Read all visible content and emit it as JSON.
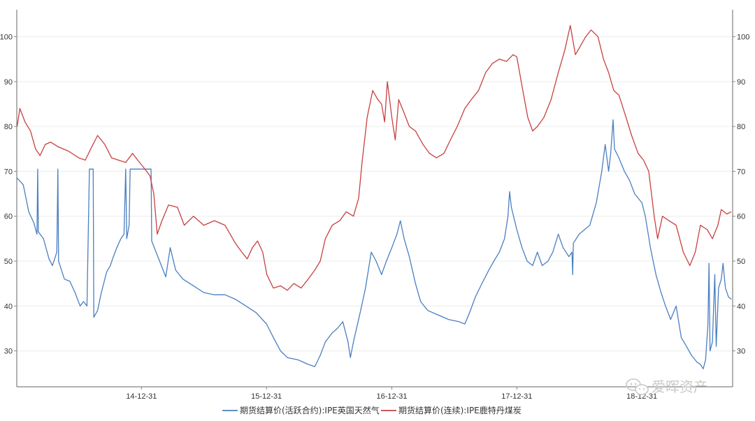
{
  "chart_data": {
    "type": "line",
    "title": "",
    "xlabel": "",
    "ylabel": "",
    "x_tick_labels": [
      "14-12-31",
      "15-12-31",
      "16-12-31",
      "17-12-31",
      "18-12-31"
    ],
    "y_ticks": [
      30,
      40,
      50,
      60,
      70,
      80,
      90,
      100
    ],
    "ylim": [
      22,
      106
    ],
    "grid": "horizontal",
    "legend_position": "bottom",
    "series": [
      {
        "name": "期货结算价(活跃合约):IPE英国天然气",
        "color": "#4a7fc1",
        "points": [
          [
            "2014-01-02",
            68.5
          ],
          [
            "2014-01-20",
            67
          ],
          [
            "2014-02-05",
            61
          ],
          [
            "2014-02-20",
            58.5
          ],
          [
            "2014-03-01",
            56
          ],
          [
            "2014-03-03",
            70.5
          ],
          [
            "2014-03-05",
            56.5
          ],
          [
            "2014-03-20",
            55
          ],
          [
            "2014-04-05",
            50.5
          ],
          [
            "2014-04-15",
            49
          ],
          [
            "2014-04-28",
            52
          ],
          [
            "2014-05-01",
            70.5
          ],
          [
            "2014-05-03",
            50
          ],
          [
            "2014-05-20",
            46
          ],
          [
            "2014-06-05",
            45.5
          ],
          [
            "2014-06-20",
            43
          ],
          [
            "2014-07-05",
            40
          ],
          [
            "2014-07-15",
            41
          ],
          [
            "2014-07-25",
            40
          ],
          [
            "2014-08-01",
            70.5
          ],
          [
            "2014-08-12",
            70.5
          ],
          [
            "2014-08-14",
            37.5
          ],
          [
            "2014-08-25",
            39
          ],
          [
            "2014-09-05",
            43
          ],
          [
            "2014-09-20",
            47.5
          ],
          [
            "2014-10-01",
            49
          ],
          [
            "2014-10-10",
            51
          ],
          [
            "2014-10-20",
            53
          ],
          [
            "2014-11-01",
            55
          ],
          [
            "2014-11-10",
            56
          ],
          [
            "2014-11-15",
            70.5
          ],
          [
            "2014-11-18",
            55
          ],
          [
            "2014-11-25",
            58
          ],
          [
            "2014-11-28",
            70.5
          ],
          [
            "2015-01-28",
            70.5
          ],
          [
            "2015-01-30",
            54.5
          ],
          [
            "2015-03-12",
            46.5
          ],
          [
            "2015-03-25",
            53
          ],
          [
            "2015-04-10",
            48
          ],
          [
            "2015-05-01",
            46
          ],
          [
            "2015-06-01",
            44.5
          ],
          [
            "2015-07-01",
            43
          ],
          [
            "2015-08-01",
            42.5
          ],
          [
            "2015-09-01",
            42.5
          ],
          [
            "2015-10-01",
            41.5
          ],
          [
            "2015-11-01",
            40
          ],
          [
            "2015-12-01",
            38.5
          ],
          [
            "2015-12-31",
            36
          ],
          [
            "2016-01-20",
            33
          ],
          [
            "2016-02-10",
            30
          ],
          [
            "2016-03-01",
            28.5
          ],
          [
            "2016-04-01",
            28
          ],
          [
            "2016-05-01",
            27
          ],
          [
            "2016-05-20",
            26.5
          ],
          [
            "2016-06-05",
            29
          ],
          [
            "2016-06-20",
            32
          ],
          [
            "2016-07-10",
            34
          ],
          [
            "2016-07-25",
            35
          ],
          [
            "2016-08-10",
            36.5
          ],
          [
            "2016-08-25",
            32
          ],
          [
            "2016-09-01",
            28.5
          ],
          [
            "2016-09-10",
            32
          ],
          [
            "2016-10-01",
            39
          ],
          [
            "2016-10-15",
            44
          ],
          [
            "2016-11-01",
            52
          ],
          [
            "2016-11-15",
            50
          ],
          [
            "2016-12-01",
            47
          ],
          [
            "2016-12-15",
            50
          ],
          [
            "2016-12-31",
            53
          ],
          [
            "2017-01-15",
            56
          ],
          [
            "2017-01-25",
            59
          ],
          [
            "2017-02-05",
            55
          ],
          [
            "2017-02-20",
            51
          ],
          [
            "2017-03-10",
            45
          ],
          [
            "2017-03-25",
            41
          ],
          [
            "2017-04-15",
            39
          ],
          [
            "2017-05-15",
            38
          ],
          [
            "2017-06-15",
            37
          ],
          [
            "2017-07-15",
            36.5
          ],
          [
            "2017-08-01",
            36
          ],
          [
            "2017-08-15",
            38.5
          ],
          [
            "2017-09-01",
            42
          ],
          [
            "2017-09-20",
            45
          ],
          [
            "2017-10-10",
            48
          ],
          [
            "2017-10-25",
            50
          ],
          [
            "2017-11-10",
            52
          ],
          [
            "2017-11-25",
            55
          ],
          [
            "2017-12-05",
            60
          ],
          [
            "2017-12-10",
            65.5
          ],
          [
            "2017-12-15",
            62
          ],
          [
            "2017-12-31",
            57
          ],
          [
            "2018-01-15",
            53
          ],
          [
            "2018-01-30",
            50
          ],
          [
            "2018-02-15",
            49
          ],
          [
            "2018-03-01",
            52
          ],
          [
            "2018-03-15",
            49
          ],
          [
            "2018-04-01",
            50
          ],
          [
            "2018-04-15",
            52
          ],
          [
            "2018-05-01",
            56
          ],
          [
            "2018-05-15",
            53
          ],
          [
            "2018-06-01",
            51
          ],
          [
            "2018-06-10",
            52
          ],
          [
            "2018-06-12",
            47
          ],
          [
            "2018-06-14",
            54
          ],
          [
            "2018-07-01",
            56
          ],
          [
            "2018-08-01",
            58
          ],
          [
            "2018-08-20",
            63
          ],
          [
            "2018-09-05",
            70
          ],
          [
            "2018-09-15",
            76
          ],
          [
            "2018-09-25",
            70
          ],
          [
            "2018-10-01",
            74
          ],
          [
            "2018-10-08",
            81.5
          ],
          [
            "2018-10-12",
            75
          ],
          [
            "2018-10-25",
            73
          ],
          [
            "2018-11-10",
            70
          ],
          [
            "2018-11-25",
            68
          ],
          [
            "2018-12-10",
            65
          ],
          [
            "2018-12-31",
            63
          ],
          [
            "2019-01-10",
            60
          ],
          [
            "2019-01-25",
            53
          ],
          [
            "2019-02-10",
            47
          ],
          [
            "2019-02-25",
            43
          ],
          [
            "2019-03-10",
            40
          ],
          [
            "2019-03-25",
            37
          ],
          [
            "2019-04-10",
            40
          ],
          [
            "2019-04-25",
            33
          ],
          [
            "2019-05-10",
            31
          ],
          [
            "2019-05-25",
            29
          ],
          [
            "2019-06-10",
            27.5
          ],
          [
            "2019-06-20",
            27
          ],
          [
            "2019-06-28",
            26
          ],
          [
            "2019-07-05",
            28
          ],
          [
            "2019-07-12",
            36
          ],
          [
            "2019-07-15",
            49.5
          ],
          [
            "2019-07-18",
            30
          ],
          [
            "2019-07-25",
            32
          ],
          [
            "2019-08-01",
            47
          ],
          [
            "2019-08-05",
            31
          ],
          [
            "2019-08-12",
            44
          ],
          [
            "2019-08-20",
            46
          ],
          [
            "2019-08-25",
            49.5
          ],
          [
            "2019-09-01",
            44
          ],
          [
            "2019-09-10",
            42
          ],
          [
            "2019-09-18",
            41.5
          ]
        ]
      },
      {
        "name": "期货结算价(连续):IPE鹿特丹煤炭",
        "color": "#c84040",
        "points": [
          [
            "2014-01-02",
            80
          ],
          [
            "2014-01-10",
            84
          ],
          [
            "2014-01-25",
            81
          ],
          [
            "2014-02-10",
            79
          ],
          [
            "2014-02-25",
            75
          ],
          [
            "2014-03-10",
            73.5
          ],
          [
            "2014-03-25",
            76
          ],
          [
            "2014-04-10",
            76.5
          ],
          [
            "2014-05-01",
            75.5
          ],
          [
            "2014-06-01",
            74.5
          ],
          [
            "2014-07-01",
            73
          ],
          [
            "2014-07-20",
            72.5
          ],
          [
            "2014-08-05",
            75
          ],
          [
            "2014-08-25",
            78
          ],
          [
            "2014-09-15",
            76
          ],
          [
            "2014-10-05",
            73
          ],
          [
            "2014-10-25",
            72.5
          ],
          [
            "2014-11-15",
            72
          ],
          [
            "2014-12-05",
            74
          ],
          [
            "2014-12-20",
            72.5
          ],
          [
            "2015-01-05",
            71
          ],
          [
            "2015-01-25",
            69
          ],
          [
            "2015-02-05",
            65
          ],
          [
            "2015-02-15",
            56
          ],
          [
            "2015-03-01",
            59
          ],
          [
            "2015-03-20",
            62.5
          ],
          [
            "2015-04-15",
            62
          ],
          [
            "2015-05-05",
            58
          ],
          [
            "2015-06-01",
            60
          ],
          [
            "2015-07-01",
            58
          ],
          [
            "2015-08-01",
            59
          ],
          [
            "2015-09-01",
            58
          ],
          [
            "2015-10-01",
            54
          ],
          [
            "2015-10-20",
            52
          ],
          [
            "2015-11-05",
            50.5
          ],
          [
            "2015-11-20",
            53
          ],
          [
            "2015-12-05",
            54.5
          ],
          [
            "2015-12-20",
            52
          ],
          [
            "2016-01-01",
            47
          ],
          [
            "2016-01-20",
            44
          ],
          [
            "2016-02-10",
            44.5
          ],
          [
            "2016-03-01",
            43.5
          ],
          [
            "2016-03-20",
            45
          ],
          [
            "2016-04-10",
            44
          ],
          [
            "2016-05-01",
            46
          ],
          [
            "2016-05-20",
            48
          ],
          [
            "2016-06-05",
            50
          ],
          [
            "2016-06-20",
            55
          ],
          [
            "2016-07-10",
            58
          ],
          [
            "2016-08-01",
            59
          ],
          [
            "2016-08-20",
            61
          ],
          [
            "2016-09-10",
            60
          ],
          [
            "2016-09-25",
            64
          ],
          [
            "2016-10-05",
            72
          ],
          [
            "2016-10-20",
            82
          ],
          [
            "2016-11-05",
            88
          ],
          [
            "2016-11-20",
            86
          ],
          [
            "2016-12-01",
            85
          ],
          [
            "2016-12-10",
            81
          ],
          [
            "2016-12-18",
            90
          ],
          [
            "2016-12-31",
            82
          ],
          [
            "2017-01-10",
            77
          ],
          [
            "2017-01-20",
            86
          ],
          [
            "2017-02-05",
            83
          ],
          [
            "2017-02-20",
            80
          ],
          [
            "2017-03-10",
            79
          ],
          [
            "2017-04-01",
            76
          ],
          [
            "2017-04-20",
            74
          ],
          [
            "2017-05-10",
            73
          ],
          [
            "2017-06-01",
            74
          ],
          [
            "2017-06-20",
            77
          ],
          [
            "2017-07-10",
            80
          ],
          [
            "2017-08-01",
            84
          ],
          [
            "2017-08-20",
            86
          ],
          [
            "2017-09-10",
            88
          ],
          [
            "2017-10-01",
            92
          ],
          [
            "2017-10-20",
            94
          ],
          [
            "2017-11-10",
            95
          ],
          [
            "2017-12-01",
            94.5
          ],
          [
            "2017-12-20",
            96
          ],
          [
            "2017-12-31",
            95.5
          ],
          [
            "2018-01-15",
            89
          ],
          [
            "2018-02-01",
            82
          ],
          [
            "2018-02-15",
            79
          ],
          [
            "2018-03-01",
            80
          ],
          [
            "2018-03-20",
            82
          ],
          [
            "2018-04-10",
            86
          ],
          [
            "2018-05-01",
            92
          ],
          [
            "2018-05-20",
            97
          ],
          [
            "2018-06-05",
            102.5
          ],
          [
            "2018-06-20",
            96
          ],
          [
            "2018-07-05",
            98
          ],
          [
            "2018-07-20",
            100
          ],
          [
            "2018-08-05",
            101.5
          ],
          [
            "2018-08-25",
            100
          ],
          [
            "2018-09-10",
            95
          ],
          [
            "2018-09-25",
            92
          ],
          [
            "2018-10-10",
            88
          ],
          [
            "2018-10-25",
            87
          ],
          [
            "2018-11-15",
            82
          ],
          [
            "2018-12-01",
            78
          ],
          [
            "2018-12-20",
            74
          ],
          [
            "2019-01-05",
            72.5
          ],
          [
            "2019-01-20",
            70
          ],
          [
            "2019-02-05",
            60
          ],
          [
            "2019-02-15",
            55
          ],
          [
            "2019-03-01",
            60
          ],
          [
            "2019-03-20",
            59
          ],
          [
            "2019-04-10",
            58
          ],
          [
            "2019-05-01",
            52
          ],
          [
            "2019-05-20",
            49
          ],
          [
            "2019-06-05",
            52
          ],
          [
            "2019-06-20",
            58
          ],
          [
            "2019-07-10",
            57
          ],
          [
            "2019-07-25",
            55
          ],
          [
            "2019-08-10",
            58
          ],
          [
            "2019-08-20",
            61.5
          ],
          [
            "2019-09-05",
            60.5
          ],
          [
            "2019-09-18",
            61
          ]
        ]
      }
    ]
  },
  "watermark": {
    "text": "爱晖资产",
    "icon": "wechat-icon"
  }
}
